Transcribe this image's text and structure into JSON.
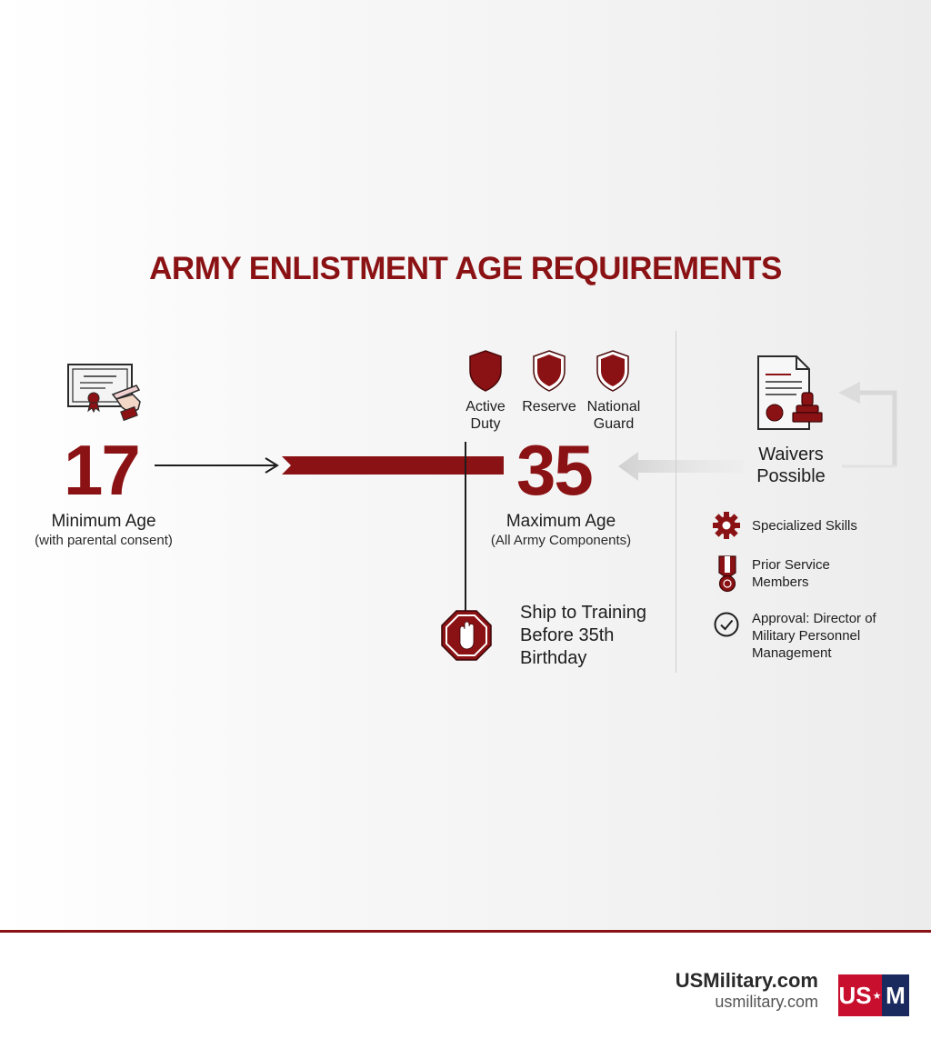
{
  "title": "ARMY ENLISTMENT AGE REQUIREMENTS",
  "minimum": {
    "age": "17",
    "label": "Minimum Age",
    "sublabel": "(with parental consent)"
  },
  "maximum": {
    "age": "35",
    "label": "Maximum Age",
    "sublabel": "(All Army Components)"
  },
  "components": [
    {
      "line1": "Active",
      "line2": "Duty"
    },
    {
      "line1": "Reserve",
      "line2": ""
    },
    {
      "line1": "National",
      "line2": "Guard"
    }
  ],
  "ship_note": {
    "line1": "Ship to Training",
    "line2": "Before 35th",
    "line3": "Birthday"
  },
  "waivers": {
    "heading_line1": "Waivers",
    "heading_line2": "Possible",
    "items": [
      {
        "icon": "gear-icon",
        "line1": "Specialized Skills",
        "line2": "",
        "line3": ""
      },
      {
        "icon": "medal-icon",
        "line1": "Prior Service",
        "line2": "Members",
        "line3": ""
      },
      {
        "icon": "check-circle-icon",
        "line1": "Approval: Director of",
        "line2": "Military Personnel",
        "line3": "Management"
      }
    ]
  },
  "footer": {
    "brand": "USMilitary.com",
    "url": "usmilitary.com",
    "logo_left": "US",
    "logo_star": "★",
    "logo_right": "M"
  },
  "colors": {
    "accent": "#8b1214",
    "navy": "#1a2a5e",
    "text": "#1c1c1c"
  }
}
